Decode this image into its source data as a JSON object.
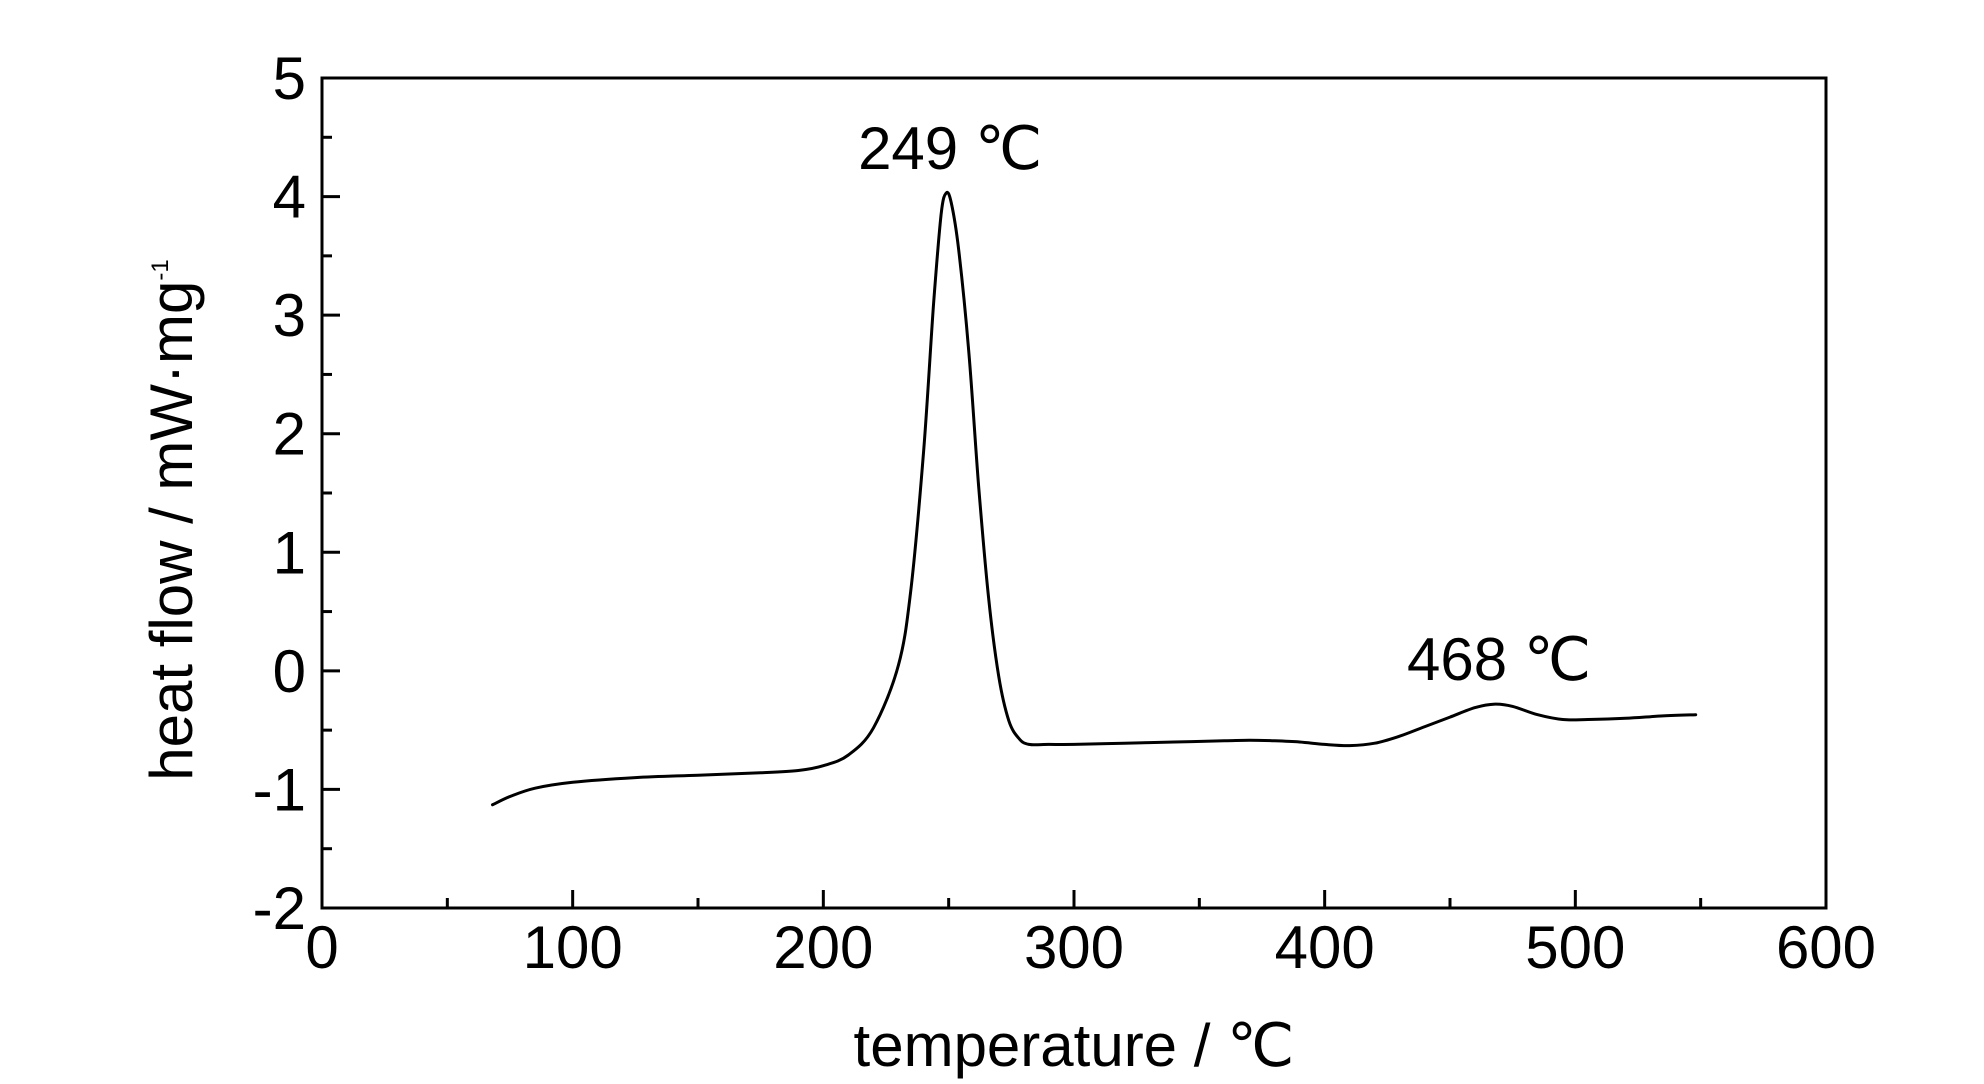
{
  "chart_data": {
    "type": "line",
    "title": "",
    "xlabel": "temperature / ℃",
    "ylabel": "heat flow / mW·mg",
    "ylabel_sup": "-1",
    "xlim": [
      0,
      600
    ],
    "ylim": [
      -2,
      5
    ],
    "x_ticks": [
      "0",
      "100",
      "200",
      "300",
      "400",
      "500",
      "600"
    ],
    "y_ticks": [
      "-2",
      "-1",
      "0",
      "1",
      "2",
      "3",
      "4",
      "5"
    ],
    "x_minor_step": 50,
    "y_minor_step": 0.5,
    "grid": false,
    "line_color": "#000000",
    "annotations": [
      {
        "text": "249 ℃",
        "x": 249,
        "y": 4.03
      },
      {
        "text": "468 ℃",
        "x": 468,
        "y": -0.28
      }
    ],
    "series": [
      {
        "x": [
          68,
          75,
          85,
          100,
          125,
          150,
          175,
          190,
          200,
          210,
          220,
          230,
          235,
          240,
          244,
          247,
          249,
          251,
          254,
          258,
          262,
          266,
          270,
          274,
          278,
          282,
          290,
          300,
          320,
          340,
          360,
          370,
          380,
          390,
          400,
          410,
          420,
          430,
          440,
          450,
          460,
          468,
          475,
          485,
          495,
          505,
          520,
          535,
          548
        ],
        "y": [
          -1.13,
          -1.06,
          -0.99,
          -0.94,
          -0.9,
          -0.88,
          -0.86,
          -0.84,
          -0.8,
          -0.71,
          -0.48,
          0.05,
          0.7,
          1.85,
          3.1,
          3.85,
          4.03,
          3.95,
          3.55,
          2.7,
          1.55,
          0.6,
          -0.05,
          -0.42,
          -0.57,
          -0.62,
          -0.62,
          -0.62,
          -0.61,
          -0.6,
          -0.59,
          -0.585,
          -0.59,
          -0.6,
          -0.62,
          -0.63,
          -0.61,
          -0.55,
          -0.47,
          -0.39,
          -0.31,
          -0.28,
          -0.3,
          -0.37,
          -0.41,
          -0.41,
          -0.4,
          -0.38,
          -0.37
        ]
      }
    ]
  }
}
